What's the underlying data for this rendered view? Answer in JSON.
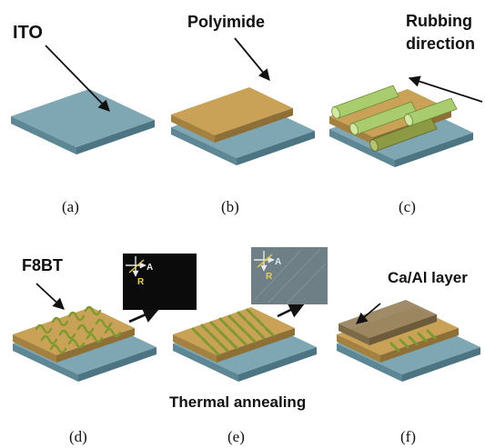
{
  "colors": {
    "ito": "#7fa6b3",
    "ito_side": "#57808e",
    "polyimide": "#c9a257",
    "polyimide_side": "#9c7a3b",
    "rod_light": "#a9cd6e",
    "rod_dark": "#7f8a35",
    "f8bt_stripe": "#8c9a3a",
    "ca_al": "#8f7a55",
    "inset_bg": "#0b0b0b",
    "inset_bg2": "#6f7f86",
    "inset_axes": "#e8e8e8",
    "inset_text": "#e8d23a"
  },
  "labels": {
    "ito": "ITO",
    "polyimide": "Polyimide",
    "rubbing_line1": "Rubbing",
    "rubbing_line2": "direction",
    "f8bt": "F8BT",
    "ca_al": "Ca/Al layer",
    "thermal": "Thermal annealing"
  },
  "panels": [
    "(a)",
    "(b)",
    "(c)",
    "(d)",
    "(e)",
    "(f)"
  ],
  "inset": {
    "a_label": "A",
    "r_label": "R"
  }
}
